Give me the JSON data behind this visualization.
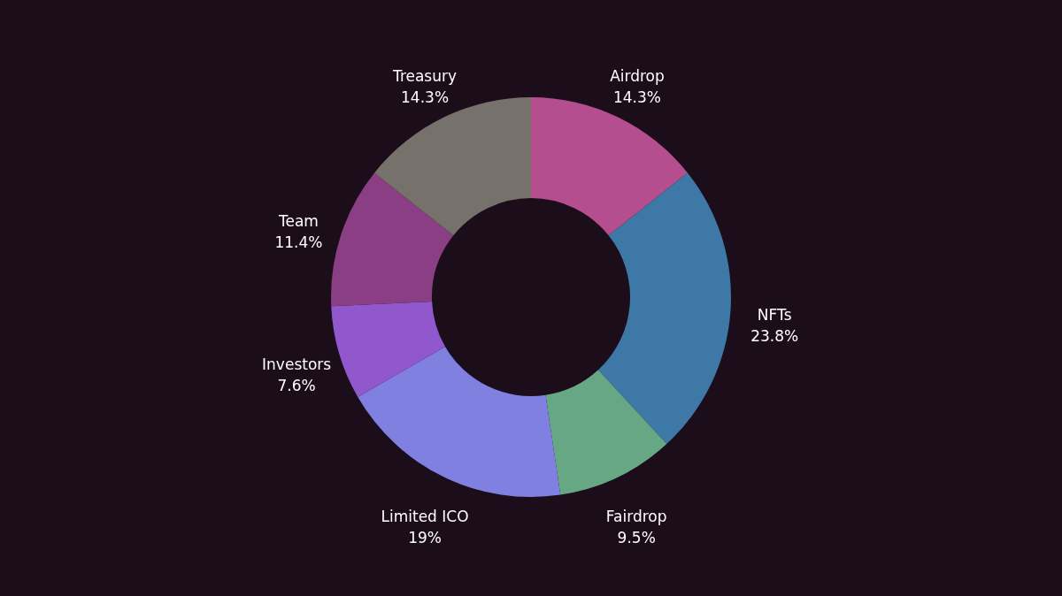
{
  "chart_data": {
    "type": "donut",
    "categories": [
      "Airdrop",
      "NFTs",
      "Fairdrop",
      "Limited ICO",
      "Investors",
      "Team",
      "Treasury"
    ],
    "values": [
      14.3,
      23.8,
      9.5,
      19,
      7.6,
      11.4,
      14.3
    ],
    "value_labels": [
      "14.3%",
      "23.8%",
      "9.5%",
      "19%",
      "7.6%",
      "11.4%",
      "14.3%"
    ],
    "colors": [
      "#b44e8f",
      "#3e78a6",
      "#67a884",
      "#7f80e0",
      "#9157cc",
      "#8a3f85",
      "#77716c"
    ],
    "legend": false
  }
}
